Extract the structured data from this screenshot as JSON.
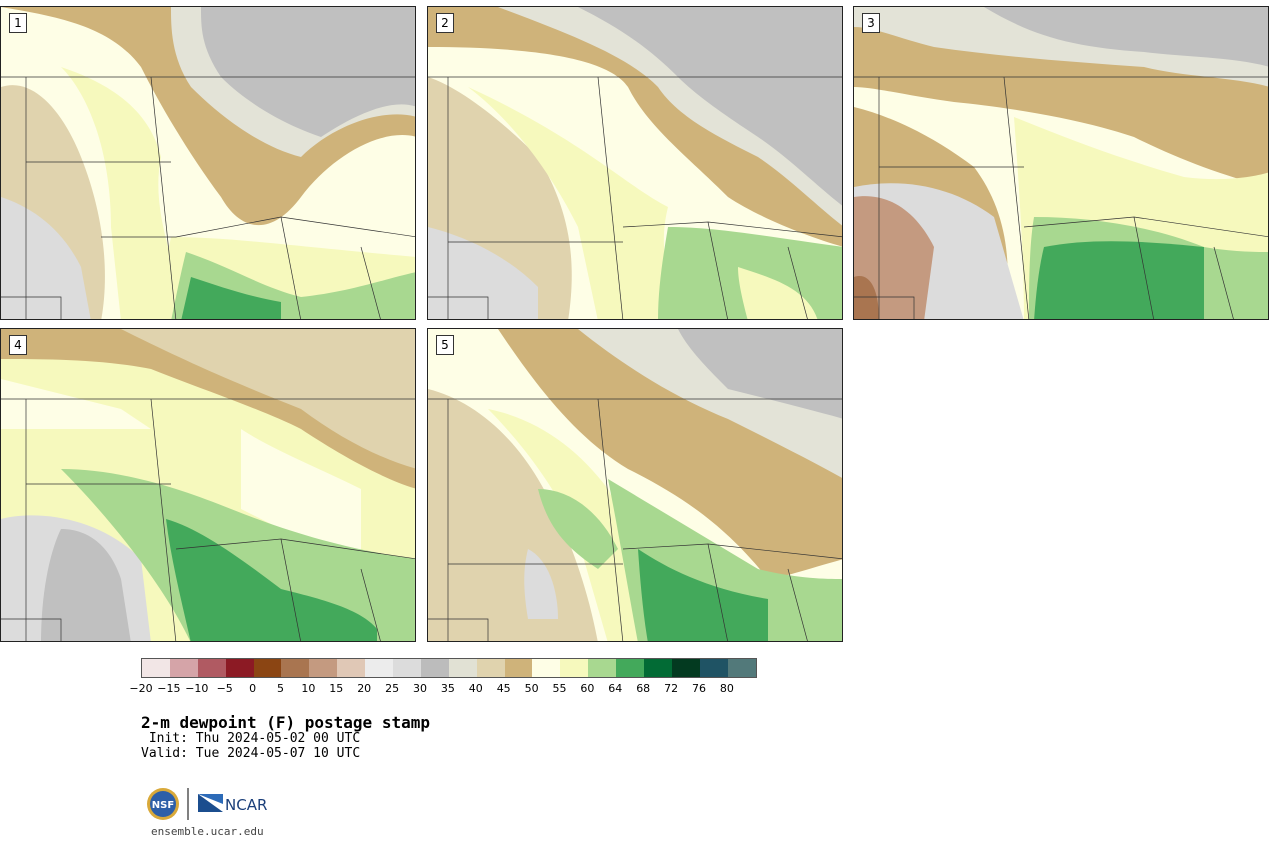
{
  "figure": {
    "title": "2-m dewpoint (F) postage stamp",
    "init_line": " Init: Thu 2024-05-02 00 UTC",
    "valid_line": "Valid: Tue 2024-05-07 10 UTC",
    "url": "ensemble.ucar.edu",
    "logo_text_nsf": "NSF",
    "logo_text_ncar": "NCAR"
  },
  "members": [
    {
      "label": "1"
    },
    {
      "label": "2"
    },
    {
      "label": "3"
    },
    {
      "label": "4"
    },
    {
      "label": "5"
    }
  ],
  "colorbar": {
    "units": "F",
    "ticks": [
      "−20",
      "−15",
      "−10",
      "−5",
      "0",
      "5",
      "10",
      "15",
      "20",
      "25",
      "30",
      "35",
      "40",
      "45",
      "50",
      "55",
      "60",
      "64",
      "68",
      "72",
      "76",
      "80"
    ],
    "colors": [
      "#f2e6e6",
      "#d5a4a8",
      "#b05a62",
      "#8c1a24",
      "#8b4513",
      "#a97550",
      "#c49a80",
      "#e0c8b6",
      "#ececec",
      "#dcdcdc",
      "#bcbcbc",
      "#e1e1d4",
      "#e0d3ae",
      "#cfb37a",
      "#fefee6",
      "#f6f9bd",
      "#a8d890",
      "#43a95b",
      "#026b35",
      "#033a20",
      "#1f5364",
      "#52797a"
    ]
  },
  "map_palette": {
    "dry_gray": "#c0c0c0",
    "light_gray": "#dcdcdc",
    "pale": "#e3e3d7",
    "tan": "#e0d3ae",
    "brown": "#cfb37a",
    "cream": "#fefee6",
    "yellow": "#f6f9bd",
    "lightgreen": "#a8d890",
    "green": "#43a95b",
    "red_brown": "#c49a80",
    "border": "#333333"
  }
}
